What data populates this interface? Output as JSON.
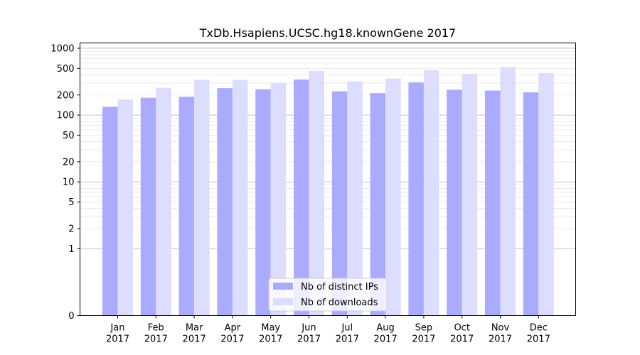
{
  "chart_data": {
    "type": "bar",
    "title": "TxDb.Hsapiens.UCSC.hg18.knownGene 2017",
    "xlabel": "",
    "ylabel": "",
    "y_scale": "symlog",
    "ylim": [
      0,
      1200
    ],
    "grid": true,
    "legend_position": "bottom-center",
    "categories": [
      "Jan\n2017",
      "Feb\n2017",
      "Mar\n2017",
      "Apr\n2017",
      "May\n2017",
      "Jun\n2017",
      "Jul\n2017",
      "Aug\n2017",
      "Sep\n2017",
      "Oct\n2017",
      "Nov\n2017",
      "Dec\n2017"
    ],
    "y_ticks": [
      0,
      1,
      2,
      5,
      10,
      20,
      50,
      100,
      200,
      500,
      1000
    ],
    "series": [
      {
        "name": "Nb of distinct IPs",
        "color": "#aaaaff",
        "values": [
          133,
          182,
          188,
          253,
          243,
          340,
          227,
          213,
          308,
          239,
          233,
          219
        ]
      },
      {
        "name": "Nb of downloads",
        "color": "#ddddff",
        "values": [
          171,
          256,
          338,
          334,
          304,
          461,
          320,
          353,
          470,
          416,
          526,
          426
        ]
      }
    ]
  }
}
